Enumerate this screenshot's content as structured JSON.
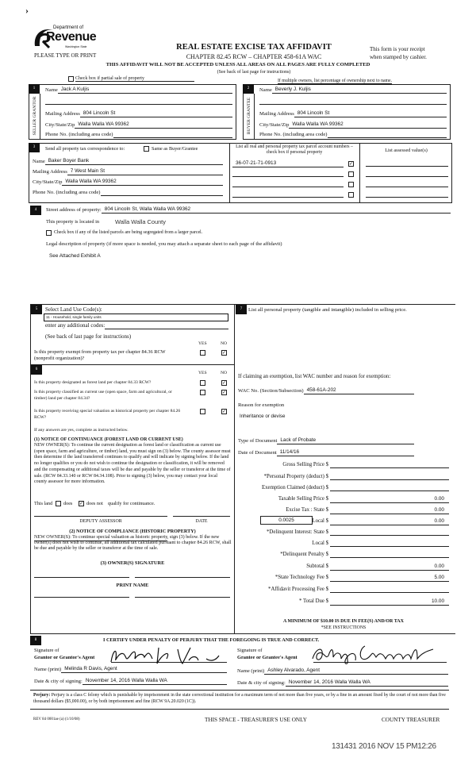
{
  "header": {
    "logo": {
      "line1": "Department of",
      "line2": "Revenue",
      "line3": "Washington State"
    },
    "please": "PLEASE TYPE OR PRINT",
    "title": "REAL ESTATE EXCISE TAX AFFIDAVIT",
    "chapter": "CHAPTER 82.45 RCW – CHAPTER 458-61A WAC",
    "warning": "THIS AFFIDAVIT WILL NOT BE ACCEPTED UNLESS ALL AREAS ON ALL PAGES ARE FULLY COMPLETED",
    "see_back": "(See back of last page for instructions)",
    "receipt1": "This form is your receipt",
    "receipt2": "when stamped by cashier.",
    "partial_label": "Check box if partial sale of property",
    "partial_checked": false,
    "multiple_owners": "If multiple owners, list percentage of ownership next to name."
  },
  "section1": {
    "num": "1",
    "side": "SELLER GRANTOR",
    "name_label": "Name",
    "name": "Jack A Kuljis",
    "mailing_label": "Mailing Address",
    "mailing": "804 Lincoln St",
    "city_label": "City/State/Zip",
    "city": "Walla Walla WA 99362",
    "phone_label": "Phone No. (including area code)",
    "phone": ""
  },
  "section2": {
    "num": "2",
    "side": "BUYER GRANTEE",
    "name_label": "Name",
    "name": "Beverly J. Kuljis",
    "mailing_label": "Mailing Address",
    "mailing": "804 Lincoln St",
    "city_label": "City/State/Zip",
    "city": "Walla Walla WA  99362",
    "phone_label": "Phone No. (including area code)",
    "phone": ""
  },
  "section3": {
    "num": "3",
    "send_label": "Send all property tax correspondence to:",
    "same_label": "Same as Buyer/Grantee",
    "same_checked": false,
    "name_label": "Name",
    "name": "Baker Boyer Bank",
    "mailing_label": "Mailing Address",
    "mailing": "7 West Main St",
    "city_label": "City/State/Zip",
    "city": "Walla Walla WA 99362",
    "phone_label": "Phone No. (including area code)",
    "phone": "",
    "parcel_header": "List all real and personal property tax parcel account numbers – check box if personal property",
    "assessed_header": "List assessed value(s)",
    "parcels": [
      {
        "number": "36-07-21-71-0913",
        "checked": true
      },
      {
        "number": "",
        "checked": false
      },
      {
        "number": "",
        "checked": false
      },
      {
        "number": "",
        "checked": false
      }
    ]
  },
  "section4": {
    "num": "4",
    "street_label": "Street address of property:",
    "street": "804 Lincoln St, Walla Walla WA 99362",
    "located_label": "This property is located in",
    "county": "Walla Walla County",
    "segregated_label": "Check box if any of the listed parcels are being segregated from a larger parcel.",
    "segregated_checked": false,
    "legal_label": "Legal description of property (if more space is needed, you may attach a separate sheet to each page of the affidavit)",
    "legal": "See Attached Exhibit A"
  },
  "section5": {
    "num": "5",
    "select_label": "Select Land Use Code(s):",
    "land_use": "11 - Household, single family units",
    "additional_label": "enter any additional codes:",
    "additional": "",
    "see_back": "(See back of last page for instructions)",
    "yes": "YES",
    "no": "NO",
    "exempt_q": "Is this property exempt from property tax per chapter 84.36 RCW (nonprofit organization)?",
    "exempt_answer": "NO"
  },
  "section6": {
    "num": "6",
    "yes": "YES",
    "no": "NO",
    "questions": [
      {
        "q": "Is this property designated as forest land per chapter 84.33 RCW?",
        "answer": "NO"
      },
      {
        "q": "Is this property classified as current use (open space, farm and agricultural, or timber) land per chapter 84.34?",
        "answer": "NO"
      },
      {
        "q": "Is this property receiving special valuation as historical property per chapter 84.26 RCW?",
        "answer": "NO"
      }
    ],
    "if_any": "If any answers are yes, complete as instructed below.",
    "notice1_title": "(1) NOTICE OF CONTINUANCE (FOREST LAND OR CURRENT USE)",
    "notice1_text": "NEW OWNER(S): To continue the current designation as forest land or classification as current use (open space, farm and agriculture, or timber) land, you must sign on (3) below. The county assessor must then determine if the land transferred continues to qualify and will indicate by signing below. If the land no longer qualifies or you do not wish to continue the designation or classification, it will be removed and the compensating or additional taxes will be due and payable by the seller or transferor at the time of sale. (RCW 84.33.140 or RCW 84.34.108). Prior to signing (3) below, you may contact your local county assessor for more information.",
    "this_land": "This land",
    "does": "does",
    "does_not": "does not",
    "qualify": "qualify for continuance.",
    "continuance": "does not",
    "deputy": "DEPUTY ASSESSOR",
    "date": "DATE",
    "notice2_title": "(2) NOTICE OF COMPLIANCE (HISTORIC PROPERTY)",
    "notice2_text": "NEW OWNER(S): To continue special valuation as historic property, sign (3) below. If the new owner(s) does not wish to continue, all additional tax calculated pursuant to chapter 84.26 RCW, shall be due and payable by the seller or transferor at the time of sale.",
    "owner_sig": "(3) OWNER(S) SIGNATURE",
    "print_name": "PRINT NAME"
  },
  "section7": {
    "num": "7",
    "list_label": "List all  personal property (tangible and intangible) included in selling price.",
    "exemption_label": "If claiming an exemption, list WAC number and reason for exemption:",
    "wac_label": "WAC No. (Section/Subsection)",
    "wac": "458-61A-202",
    "reason_label": "Reason for exemption",
    "reason": "Inheritance or devise",
    "doc_type_label": "Type of Document",
    "doc_type": "Lack of Probate",
    "doc_date_label": "Date of Document",
    "doc_date": "11/14/16",
    "local_rate": "0.0025",
    "fees": [
      {
        "label": "Gross Selling Price  $",
        "value": ""
      },
      {
        "label": "*Personal Property (deduct)  $",
        "value": ""
      },
      {
        "label": "Exemption Claimed (deduct)  $",
        "value": ""
      },
      {
        "label": "Taxable Selling Price  $",
        "value": "0.00"
      },
      {
        "label": "Excise Tax : State  $",
        "value": "0.00"
      },
      {
        "label": "Local  $",
        "value": "0.00"
      },
      {
        "label": "*Delinquent Interest: State  $",
        "value": ""
      },
      {
        "label": "Local  $",
        "value": ""
      },
      {
        "label": "*Delinquent Penalty  $",
        "value": ""
      },
      {
        "label": "Subtotal  $",
        "value": "0.00"
      },
      {
        "label": "*State Technology Fee  $",
        "value": "5.00"
      },
      {
        "label": "*Affidavit Processing Fee  $",
        "value": ""
      },
      {
        "label": "*    Total Due  $",
        "value": "10.00"
      }
    ],
    "minimum": "A MINIMUM OF $10.00 IS DUE IN FEE(S) AND/OR TAX",
    "see_instructions": "*SEE INSTRUCTIONS"
  },
  "section8": {
    "num": "8",
    "certify": "I CERTIFY UNDER PENALTY OF PERJURY THAT THE FOREGOING IS TRUE AND CORRECT.",
    "grantor_sig1": "Signature of",
    "grantor_sig2": "Grantor or Grantor's Agent",
    "grantee_sig1": "Signature of",
    "grantee_sig2": "Grantee or Grantee's Agent",
    "name_label": "Name (print)",
    "grantor_name": "Melinda R Davis, Agent",
    "grantee_name": "Ashley Alvarado, Agent",
    "date_label": "Date & city of signing:",
    "grantor_date": "November 14, 2016  Walla Walla WA",
    "grantee_date": "November 14, 2016 Walla Walla WA"
  },
  "footer": {
    "perjury_label": "Perjury:",
    "perjury_text": "Perjury is a class C felony which is punishable by imprisonment in the state correctional institution for a maximum term of not more than five years, or by a fine in an amount fixed by the court of not more than five thousand dollars ($5,000.00), or by both imprisonment and fine (RCW 9A.20.020 (1C)).",
    "rev": "REV 84 0001ae (a) (1/10/08)",
    "treasurer_space": "THIS SPACE - TREASURER'S USE ONLY",
    "county_treasurer": "COUNTY TREASURER",
    "stamp": "131431 2016 NOV 15 PM12:26"
  }
}
